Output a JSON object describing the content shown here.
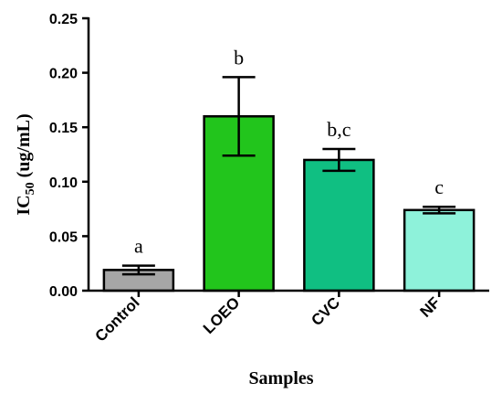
{
  "chart_data": {
    "type": "bar",
    "xlabel": "Samples",
    "ylabel": {
      "main": "IC",
      "subscript": "50",
      "suffix": " (ug/mL)"
    },
    "ylim": [
      0,
      0.25
    ],
    "y_ticks": [
      "0.00",
      "0.05",
      "0.10",
      "0.15",
      "0.20",
      "0.25"
    ],
    "grid": false,
    "categories": [
      "Control",
      "LOEO",
      "CVC",
      "NF"
    ],
    "values": [
      0.019,
      0.16,
      0.12,
      0.074
    ],
    "error": [
      0.004,
      0.036,
      0.01,
      0.003
    ],
    "significance": [
      "a",
      "b",
      "b,c",
      "c"
    ],
    "colors": [
      "#a6a6a6",
      "#22c51c",
      "#10bf82",
      "#8ef2da"
    ]
  }
}
